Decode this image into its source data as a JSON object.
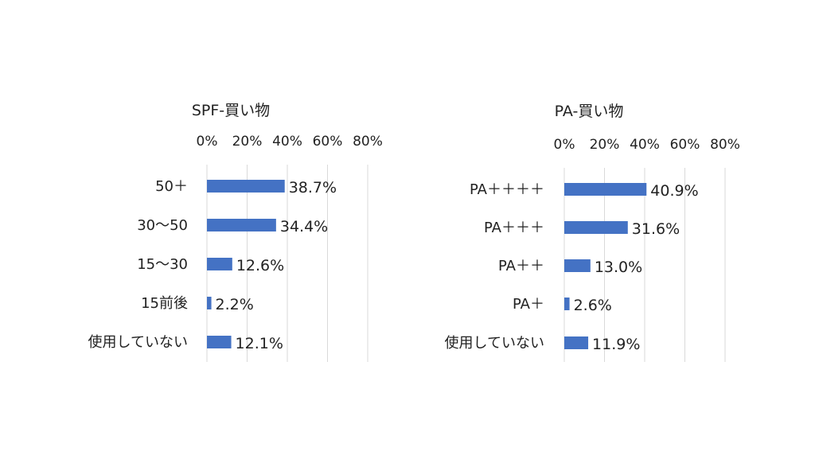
{
  "chart_data": [
    {
      "type": "bar",
      "orientation": "horizontal",
      "title": "SPF-買い物",
      "categories": [
        "50＋",
        "30～50",
        "15～30",
        "15前後",
        "使用していない"
      ],
      "values": [
        38.7,
        34.4,
        12.6,
        2.2,
        12.1
      ],
      "value_labels": [
        "38.7%",
        "34.4%",
        "12.6%",
        "2.2%",
        "12.1%"
      ],
      "ticks": [
        "0%",
        "20%",
        "40%",
        "60%",
        "80%"
      ],
      "xlim": [
        0,
        80
      ],
      "axis_position": "top",
      "grid": true,
      "bar_color": "#4472C4"
    },
    {
      "type": "bar",
      "orientation": "horizontal",
      "title": "PA-買い物",
      "categories": [
        "PA＋＋＋＋",
        "PA＋＋＋",
        "PA＋＋",
        "PA＋",
        "使用していない"
      ],
      "values": [
        40.9,
        31.6,
        13.0,
        2.6,
        11.9
      ],
      "value_labels": [
        "40.9%",
        "31.6%",
        "13.0%",
        "2.6%",
        "11.9%"
      ],
      "ticks": [
        "0%",
        "20%",
        "40%",
        "60%",
        "80%"
      ],
      "xlim": [
        0,
        80
      ],
      "axis_position": "top",
      "grid": true,
      "bar_color": "#4472C4"
    }
  ]
}
